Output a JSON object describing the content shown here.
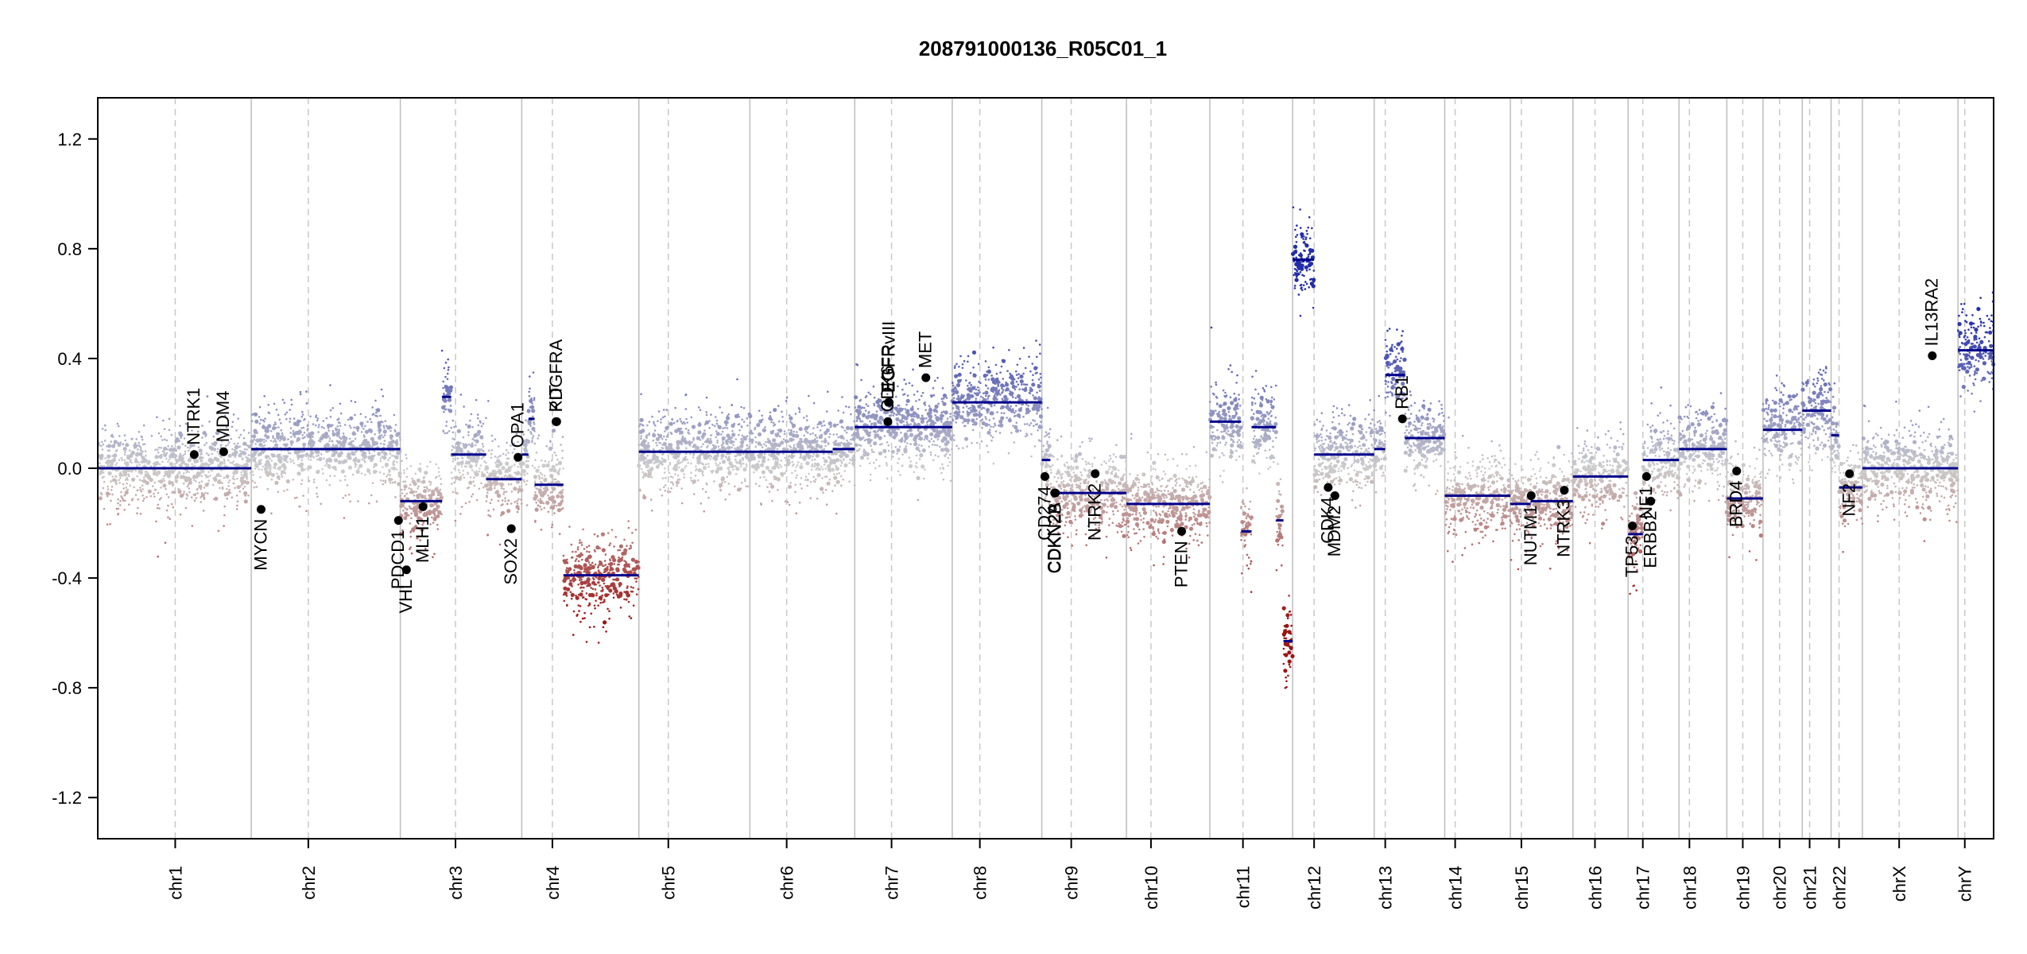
{
  "chart_data": {
    "type": "scatter",
    "title": "208791000136_R05C01_1",
    "xlabel": "",
    "ylabel": "",
    "ylim": [
      -1.35,
      1.35
    ],
    "yticks": [
      -1.2,
      -0.8,
      -0.4,
      0.0,
      0.4,
      0.8,
      1.2
    ],
    "ytick_labels": [
      "-1.2",
      "-0.8",
      "-0.4",
      "0.0",
      "0.4",
      "0.8",
      "1.2"
    ],
    "total_length": 3090,
    "chromosomes": [
      {
        "name": "chr1",
        "start": 0,
        "end": 249,
        "centromere": 125
      },
      {
        "name": "chr2",
        "start": 249,
        "end": 492,
        "centromere": 342
      },
      {
        "name": "chr3",
        "start": 492,
        "end": 690,
        "centromere": 582
      },
      {
        "name": "chr4",
        "start": 690,
        "end": 881,
        "centromere": 740
      },
      {
        "name": "chr5",
        "start": 881,
        "end": 1062,
        "centromere": 929
      },
      {
        "name": "chr6",
        "start": 1062,
        "end": 1233,
        "centromere": 1122
      },
      {
        "name": "chr7",
        "start": 1233,
        "end": 1392,
        "centromere": 1293
      },
      {
        "name": "chr8",
        "start": 1392,
        "end": 1538,
        "centromere": 1437
      },
      {
        "name": "chr9",
        "start": 1538,
        "end": 1676,
        "centromere": 1586
      },
      {
        "name": "chr10",
        "start": 1676,
        "end": 1812,
        "centromere": 1716
      },
      {
        "name": "chr11",
        "start": 1812,
        "end": 1947,
        "centromere": 1866
      },
      {
        "name": "chr12",
        "start": 1947,
        "end": 2080,
        "centromere": 1982
      },
      {
        "name": "chr13",
        "start": 2080,
        "end": 2195,
        "centromere": 2098
      },
      {
        "name": "chr14",
        "start": 2195,
        "end": 2302,
        "centromere": 2212
      },
      {
        "name": "chr15",
        "start": 2302,
        "end": 2404,
        "centromere": 2320
      },
      {
        "name": "chr16",
        "start": 2404,
        "end": 2494,
        "centromere": 2440
      },
      {
        "name": "chr17",
        "start": 2494,
        "end": 2577,
        "centromere": 2518
      },
      {
        "name": "chr18",
        "start": 2577,
        "end": 2655,
        "centromere": 2594
      },
      {
        "name": "chr19",
        "start": 2655,
        "end": 2714,
        "centromere": 2681
      },
      {
        "name": "chr20",
        "start": 2714,
        "end": 2778,
        "centromere": 2741
      },
      {
        "name": "chr21",
        "start": 2778,
        "end": 2825,
        "centromere": 2790
      },
      {
        "name": "chr22",
        "start": 2825,
        "end": 2876,
        "centromere": 2838
      },
      {
        "name": "chrX",
        "start": 2876,
        "end": 3032,
        "centromere": 2936
      },
      {
        "name": "chrY",
        "start": 3032,
        "end": 3090,
        "centromere": 3043
      }
    ],
    "segments": [
      {
        "start": 0,
        "end": 249,
        "value": 0.0
      },
      {
        "start": 249,
        "end": 492,
        "value": 0.07
      },
      {
        "start": 492,
        "end": 560,
        "value": -0.12
      },
      {
        "start": 560,
        "end": 575,
        "value": 0.26
      },
      {
        "start": 575,
        "end": 632,
        "value": 0.05
      },
      {
        "start": 632,
        "end": 690,
        "value": -0.04
      },
      {
        "start": 690,
        "end": 701,
        "value": 0.05
      },
      {
        "start": 701,
        "end": 711,
        "value": 0.18
      },
      {
        "start": 711,
        "end": 758,
        "value": -0.06
      },
      {
        "start": 758,
        "end": 881,
        "value": -0.39
      },
      {
        "start": 881,
        "end": 1197,
        "value": 0.06
      },
      {
        "start": 1197,
        "end": 1233,
        "value": 0.07
      },
      {
        "start": 1233,
        "end": 1392,
        "value": 0.15
      },
      {
        "start": 1392,
        "end": 1538,
        "value": 0.24
      },
      {
        "start": 1538,
        "end": 1552,
        "value": 0.03
      },
      {
        "start": 1552,
        "end": 1676,
        "value": -0.09
      },
      {
        "start": 1676,
        "end": 1812,
        "value": -0.13
      },
      {
        "start": 1812,
        "end": 1863,
        "value": 0.17
      },
      {
        "start": 1863,
        "end": 1880,
        "value": -0.23
      },
      {
        "start": 1880,
        "end": 1920,
        "value": 0.15
      },
      {
        "start": 1920,
        "end": 1932,
        "value": -0.19
      },
      {
        "start": 1932,
        "end": 1947,
        "value": -0.63
      },
      {
        "start": 1947,
        "end": 1982,
        "value": 0.76
      },
      {
        "start": 1982,
        "end": 2080,
        "value": 0.05
      },
      {
        "start": 2080,
        "end": 2098,
        "value": 0.07
      },
      {
        "start": 2098,
        "end": 2130,
        "value": 0.34
      },
      {
        "start": 2130,
        "end": 2195,
        "value": 0.11
      },
      {
        "start": 2195,
        "end": 2302,
        "value": -0.1
      },
      {
        "start": 2302,
        "end": 2335,
        "value": -0.13
      },
      {
        "start": 2335,
        "end": 2404,
        "value": -0.12
      },
      {
        "start": 2404,
        "end": 2494,
        "value": -0.03
      },
      {
        "start": 2494,
        "end": 2518,
        "value": -0.24
      },
      {
        "start": 2518,
        "end": 2577,
        "value": 0.03
      },
      {
        "start": 2577,
        "end": 2655,
        "value": 0.07
      },
      {
        "start": 2655,
        "end": 2714,
        "value": -0.11
      },
      {
        "start": 2714,
        "end": 2778,
        "value": 0.14
      },
      {
        "start": 2778,
        "end": 2825,
        "value": 0.21
      },
      {
        "start": 2825,
        "end": 2838,
        "value": 0.12
      },
      {
        "start": 2838,
        "end": 2876,
        "value": -0.07
      },
      {
        "start": 2876,
        "end": 3032,
        "value": 0.0
      },
      {
        "start": 3032,
        "end": 3090,
        "value": 0.43
      }
    ],
    "genes": [
      {
        "name": "NTRK1",
        "pos": 156,
        "value": 0.05
      },
      {
        "name": "MDM4",
        "pos": 204,
        "value": 0.06
      },
      {
        "name": "MYCN",
        "pos": 265,
        "value": -0.15
      },
      {
        "name": "PDCD1",
        "pos": 489,
        "value": -0.19
      },
      {
        "name": "VHL",
        "pos": 502,
        "value": -0.37
      },
      {
        "name": "MLH1",
        "pos": 529,
        "value": -0.14
      },
      {
        "name": "SOX2",
        "pos": 673,
        "value": -0.22
      },
      {
        "name": "OPA1",
        "pos": 684,
        "value": 0.04
      },
      {
        "name": "KIT",
        "pos": 746,
        "value": 0.17
      },
      {
        "name": "PDGFRA",
        "pos": 747,
        "value": 0.17
      },
      {
        "name": "EGFR",
        "pos": 1288,
        "value": 0.24
      },
      {
        "name": "EGFRvIII",
        "pos": 1289,
        "value": 0.24
      },
      {
        "name": "CDK6",
        "pos": 1287,
        "value": 0.17
      },
      {
        "name": "MET",
        "pos": 1349,
        "value": 0.33
      },
      {
        "name": "CD274",
        "pos": 1543,
        "value": -0.03
      },
      {
        "name": "CDKN2A",
        "pos": 1559,
        "value": -0.09
      },
      {
        "name": "CDKN2B",
        "pos": 1560,
        "value": -0.09
      },
      {
        "name": "NTRK2",
        "pos": 1625,
        "value": -0.02
      },
      {
        "name": "PTEN",
        "pos": 1766,
        "value": -0.23
      },
      {
        "name": "CDK4",
        "pos": 2005,
        "value": -0.07
      },
      {
        "name": "MDM2",
        "pos": 2016,
        "value": -0.1
      },
      {
        "name": "RB1",
        "pos": 2126,
        "value": 0.18
      },
      {
        "name": "NUTM1",
        "pos": 2336,
        "value": -0.1
      },
      {
        "name": "NTRK3",
        "pos": 2390,
        "value": -0.08
      },
      {
        "name": "TP53",
        "pos": 2501,
        "value": -0.21
      },
      {
        "name": "NF1",
        "pos": 2524,
        "value": -0.03
      },
      {
        "name": "ERBB2",
        "pos": 2531,
        "value": -0.12
      },
      {
        "name": "BRD4",
        "pos": 2671,
        "value": -0.01
      },
      {
        "name": "NF2",
        "pos": 2855,
        "value": -0.02
      },
      {
        "name": "IL13RA2",
        "pos": 2990,
        "value": 0.41
      }
    ]
  }
}
